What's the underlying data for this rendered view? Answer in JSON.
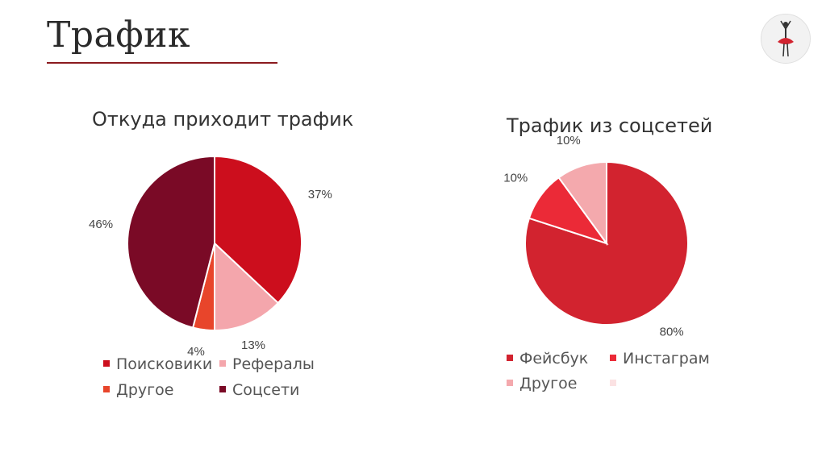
{
  "slide": {
    "title": "Трафик"
  },
  "chart_data": [
    {
      "type": "pie",
      "title": "Откуда приходит трафик",
      "categories": [
        "Поисковики",
        "Рефералы",
        "Другое",
        "Соцсети"
      ],
      "values": [
        37,
        13,
        4,
        46
      ],
      "labels": [
        "37%",
        "13%",
        "4%",
        "46%"
      ],
      "colors": [
        "#cc0e1d",
        "#f4a6ac",
        "#e8452b",
        "#7a0a26"
      ],
      "legend": "bottom"
    },
    {
      "type": "pie",
      "title": "Трафик из соцсетей",
      "categories": [
        "Фейсбук",
        "Инстаграм",
        "Другое",
        ""
      ],
      "values": [
        80,
        10,
        10,
        0
      ],
      "labels": [
        "80%",
        "10%",
        "10%"
      ],
      "colors": [
        "#d2232f",
        "#eb2a37",
        "#f4a9ad",
        "#fbe2e3"
      ],
      "legend": "bottom"
    }
  ]
}
